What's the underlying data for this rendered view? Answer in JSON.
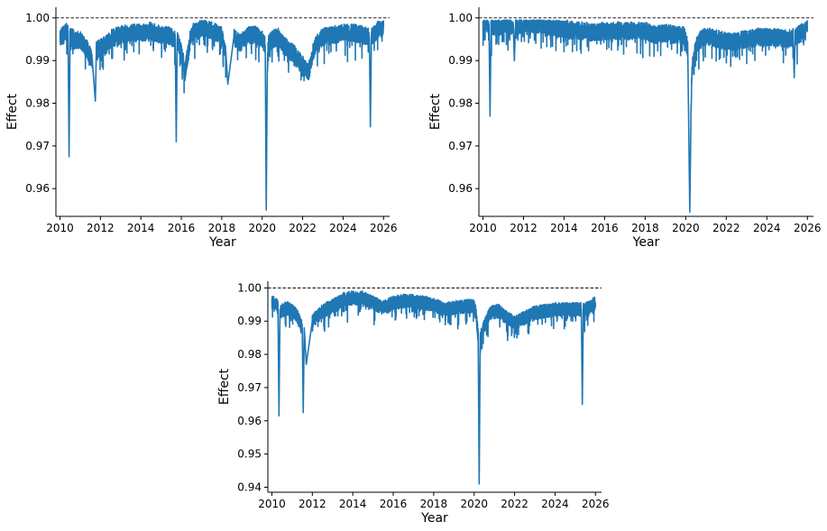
{
  "chart_data": [
    {
      "type": "line",
      "xlabel": "Year",
      "ylabel": "Effect",
      "xlim": [
        2009.8,
        2026.3
      ],
      "ylim": [
        0.9535,
        1.0025
      ],
      "xticks": [
        "2010",
        "2012",
        "2014",
        "2016",
        "2018",
        "2020",
        "2022",
        "2024",
        "2026"
      ],
      "yticks": [
        "0.96",
        "0.97",
        "0.98",
        "0.99",
        "1.00"
      ],
      "reference_line": {
        "y": 1.0,
        "style": "dashed",
        "color": "#000000"
      },
      "series": [
        {
          "color": "#1f77b4",
          "x": [
            2010.0,
            2010.2,
            2010.4,
            2010.45,
            2010.5,
            2010.8,
            2011.0,
            2011.3,
            2011.6,
            2011.75,
            2011.8,
            2012.2,
            2012.6,
            2013.0,
            2013.5,
            2014.0,
            2014.5,
            2015.0,
            2015.3,
            2015.7,
            2015.75,
            2015.8,
            2016.1,
            2016.15,
            2016.5,
            2017.0,
            2017.5,
            2018.0,
            2018.2,
            2018.3,
            2018.6,
            2018.9,
            2019.3,
            2019.7,
            2020.0,
            2020.15,
            2020.2,
            2020.25,
            2020.3,
            2020.5,
            2020.8,
            2021.2,
            2021.6,
            2022.0,
            2022.3,
            2022.6,
            2023.0,
            2023.5,
            2024.0,
            2024.5,
            2025.0,
            2025.3,
            2025.35,
            2025.4,
            2025.7,
            2026.0
          ],
          "y": [
            0.9955,
            0.996,
            0.997,
            0.9675,
            0.996,
            0.9945,
            0.995,
            0.993,
            0.99,
            0.9805,
            0.9925,
            0.9935,
            0.9955,
            0.996,
            0.9965,
            0.9965,
            0.997,
            0.996,
            0.996,
            0.995,
            0.971,
            0.995,
            0.99,
            0.9865,
            0.9965,
            0.9975,
            0.997,
            0.996,
            0.992,
            0.9845,
            0.9955,
            0.994,
            0.996,
            0.996,
            0.995,
            0.9935,
            0.955,
            0.9875,
            0.994,
            0.995,
            0.9955,
            0.993,
            0.9915,
            0.989,
            0.9875,
            0.9935,
            0.9955,
            0.996,
            0.9965,
            0.9965,
            0.996,
            0.9955,
            0.9745,
            0.9955,
            0.997,
            0.998
          ]
        }
      ]
    },
    {
      "type": "line",
      "xlabel": "Year",
      "ylabel": "Effect",
      "xlim": [
        2009.8,
        2026.3
      ],
      "ylim": [
        0.9535,
        1.0025
      ],
      "xticks": [
        "2010",
        "2012",
        "2014",
        "2016",
        "2018",
        "2020",
        "2022",
        "2024",
        "2026"
      ],
      "yticks": [
        "0.96",
        "0.97",
        "0.98",
        "0.99",
        "1.00"
      ],
      "reference_line": {
        "y": 1.0,
        "style": "dashed",
        "color": "#000000"
      },
      "series": [
        {
          "color": "#1f77b4",
          "x": [
            2010.0,
            2010.2,
            2010.3,
            2010.35,
            2010.4,
            2010.8,
            2011.2,
            2011.5,
            2011.55,
            2011.6,
            2012.2,
            2012.8,
            2013.5,
            2014.0,
            2014.5,
            2015.0,
            2015.5,
            2016.0,
            2016.5,
            2017.0,
            2017.5,
            2018.0,
            2018.5,
            2019.0,
            2019.5,
            2019.9,
            2020.1,
            2020.2,
            2020.25,
            2020.3,
            2020.5,
            2020.8,
            2021.2,
            2021.6,
            2022.0,
            2022.5,
            2023.0,
            2023.5,
            2024.0,
            2024.5,
            2025.0,
            2025.3,
            2025.35,
            2025.4,
            2025.7,
            2026.0
          ],
          "y": [
            0.9985,
            0.9985,
            0.998,
            0.977,
            0.998,
            0.998,
            0.9985,
            0.998,
            0.99,
            0.998,
            0.9985,
            0.9985,
            0.9975,
            0.9975,
            0.997,
            0.997,
            0.9965,
            0.997,
            0.997,
            0.997,
            0.997,
            0.997,
            0.996,
            0.9965,
            0.996,
            0.996,
            0.993,
            0.9545,
            0.9735,
            0.988,
            0.993,
            0.9955,
            0.9955,
            0.995,
            0.9945,
            0.9945,
            0.995,
            0.9955,
            0.9955,
            0.9955,
            0.995,
            0.9955,
            0.986,
            0.9955,
            0.9965,
            0.998
          ]
        }
      ]
    },
    {
      "type": "line",
      "xlabel": "Year",
      "ylabel": "Effect",
      "xlim": [
        2009.8,
        2026.3
      ],
      "ylim": [
        0.9385,
        1.002
      ],
      "xticks": [
        "2010",
        "2012",
        "2014",
        "2016",
        "2018",
        "2020",
        "2022",
        "2024",
        "2026"
      ],
      "yticks": [
        "0.94",
        "0.95",
        "0.96",
        "0.97",
        "0.98",
        "0.99",
        "1.00"
      ],
      "reference_line": {
        "y": 1.0,
        "style": "dashed",
        "color": "#000000"
      },
      "series": [
        {
          "color": "#1f77b4",
          "x": [
            2010.0,
            2010.2,
            2010.3,
            2010.35,
            2010.4,
            2010.8,
            2011.2,
            2011.5,
            2011.55,
            2011.6,
            2011.7,
            2012.0,
            2012.5,
            2013.0,
            2013.5,
            2014.0,
            2014.5,
            2015.0,
            2015.5,
            2016.0,
            2016.5,
            2017.0,
            2017.5,
            2018.0,
            2018.5,
            2019.0,
            2019.5,
            2020.0,
            2020.1,
            2020.2,
            2020.25,
            2020.3,
            2020.5,
            2020.8,
            2021.2,
            2021.6,
            2022.0,
            2022.5,
            2023.0,
            2023.5,
            2024.0,
            2024.5,
            2025.0,
            2025.3,
            2025.35,
            2025.4,
            2025.7,
            2026.0
          ],
          "y": [
            0.9955,
            0.995,
            0.994,
            0.9615,
            0.993,
            0.994,
            0.992,
            0.988,
            0.9625,
            0.988,
            0.977,
            0.99,
            0.993,
            0.9945,
            0.9965,
            0.997,
            0.997,
            0.9955,
            0.994,
            0.9955,
            0.996,
            0.996,
            0.9955,
            0.995,
            0.9935,
            0.994,
            0.9945,
            0.9945,
            0.992,
            0.985,
            0.941,
            0.985,
            0.9885,
            0.9925,
            0.993,
            0.991,
            0.9895,
            0.991,
            0.9925,
            0.993,
            0.9935,
            0.9935,
            0.9935,
            0.9935,
            0.965,
            0.9935,
            0.994,
            0.9955
          ]
        }
      ]
    }
  ]
}
